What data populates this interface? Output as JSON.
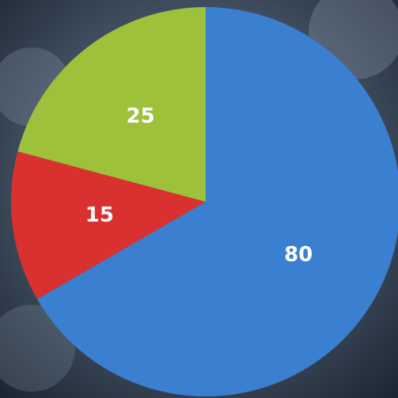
{
  "chart_data": {
    "type": "pie",
    "values": [
      80,
      15,
      25
    ],
    "colors": [
      "#3a7fd0",
      "#d9312f",
      "#9dc13a"
    ]
  }
}
